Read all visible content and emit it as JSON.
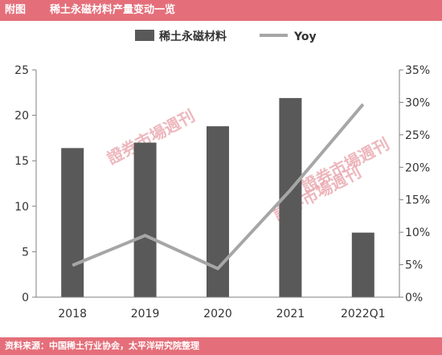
{
  "header": {
    "figure_label": "附图",
    "title": "稀土永磁材料产量变动一览"
  },
  "footer": {
    "source": "资料来源：中国稀土行业协会，太平洋研究院整理"
  },
  "watermark": {
    "text": "證券市場週刊",
    "color": "#e8a0a8"
  },
  "colors": {
    "bar": "#595959",
    "line": "#a6a6a6",
    "header_bg": "#e46f7a"
  },
  "chart_data": {
    "type": "bar",
    "categories": [
      "2018",
      "2019",
      "2020",
      "2021",
      "2022Q1"
    ],
    "series": [
      {
        "name": "稀土永磁材料",
        "type": "bar",
        "axis": "left",
        "values": [
          16.4,
          17.0,
          18.8,
          21.9,
          7.1
        ]
      },
      {
        "name": "Yoy",
        "type": "line",
        "axis": "right",
        "values": [
          0.049,
          0.095,
          0.044,
          0.165,
          0.297
        ]
      }
    ],
    "y_left": {
      "lim": [
        0,
        25
      ],
      "ticks": [
        "0",
        "5",
        "10",
        "15",
        "20",
        "25"
      ]
    },
    "y_right": {
      "lim": [
        0,
        0.35
      ],
      "ticks": [
        "0%",
        "5%",
        "10%",
        "15%",
        "20%",
        "25%",
        "30%",
        "35%"
      ]
    },
    "legend_position": "top",
    "grid": false
  }
}
